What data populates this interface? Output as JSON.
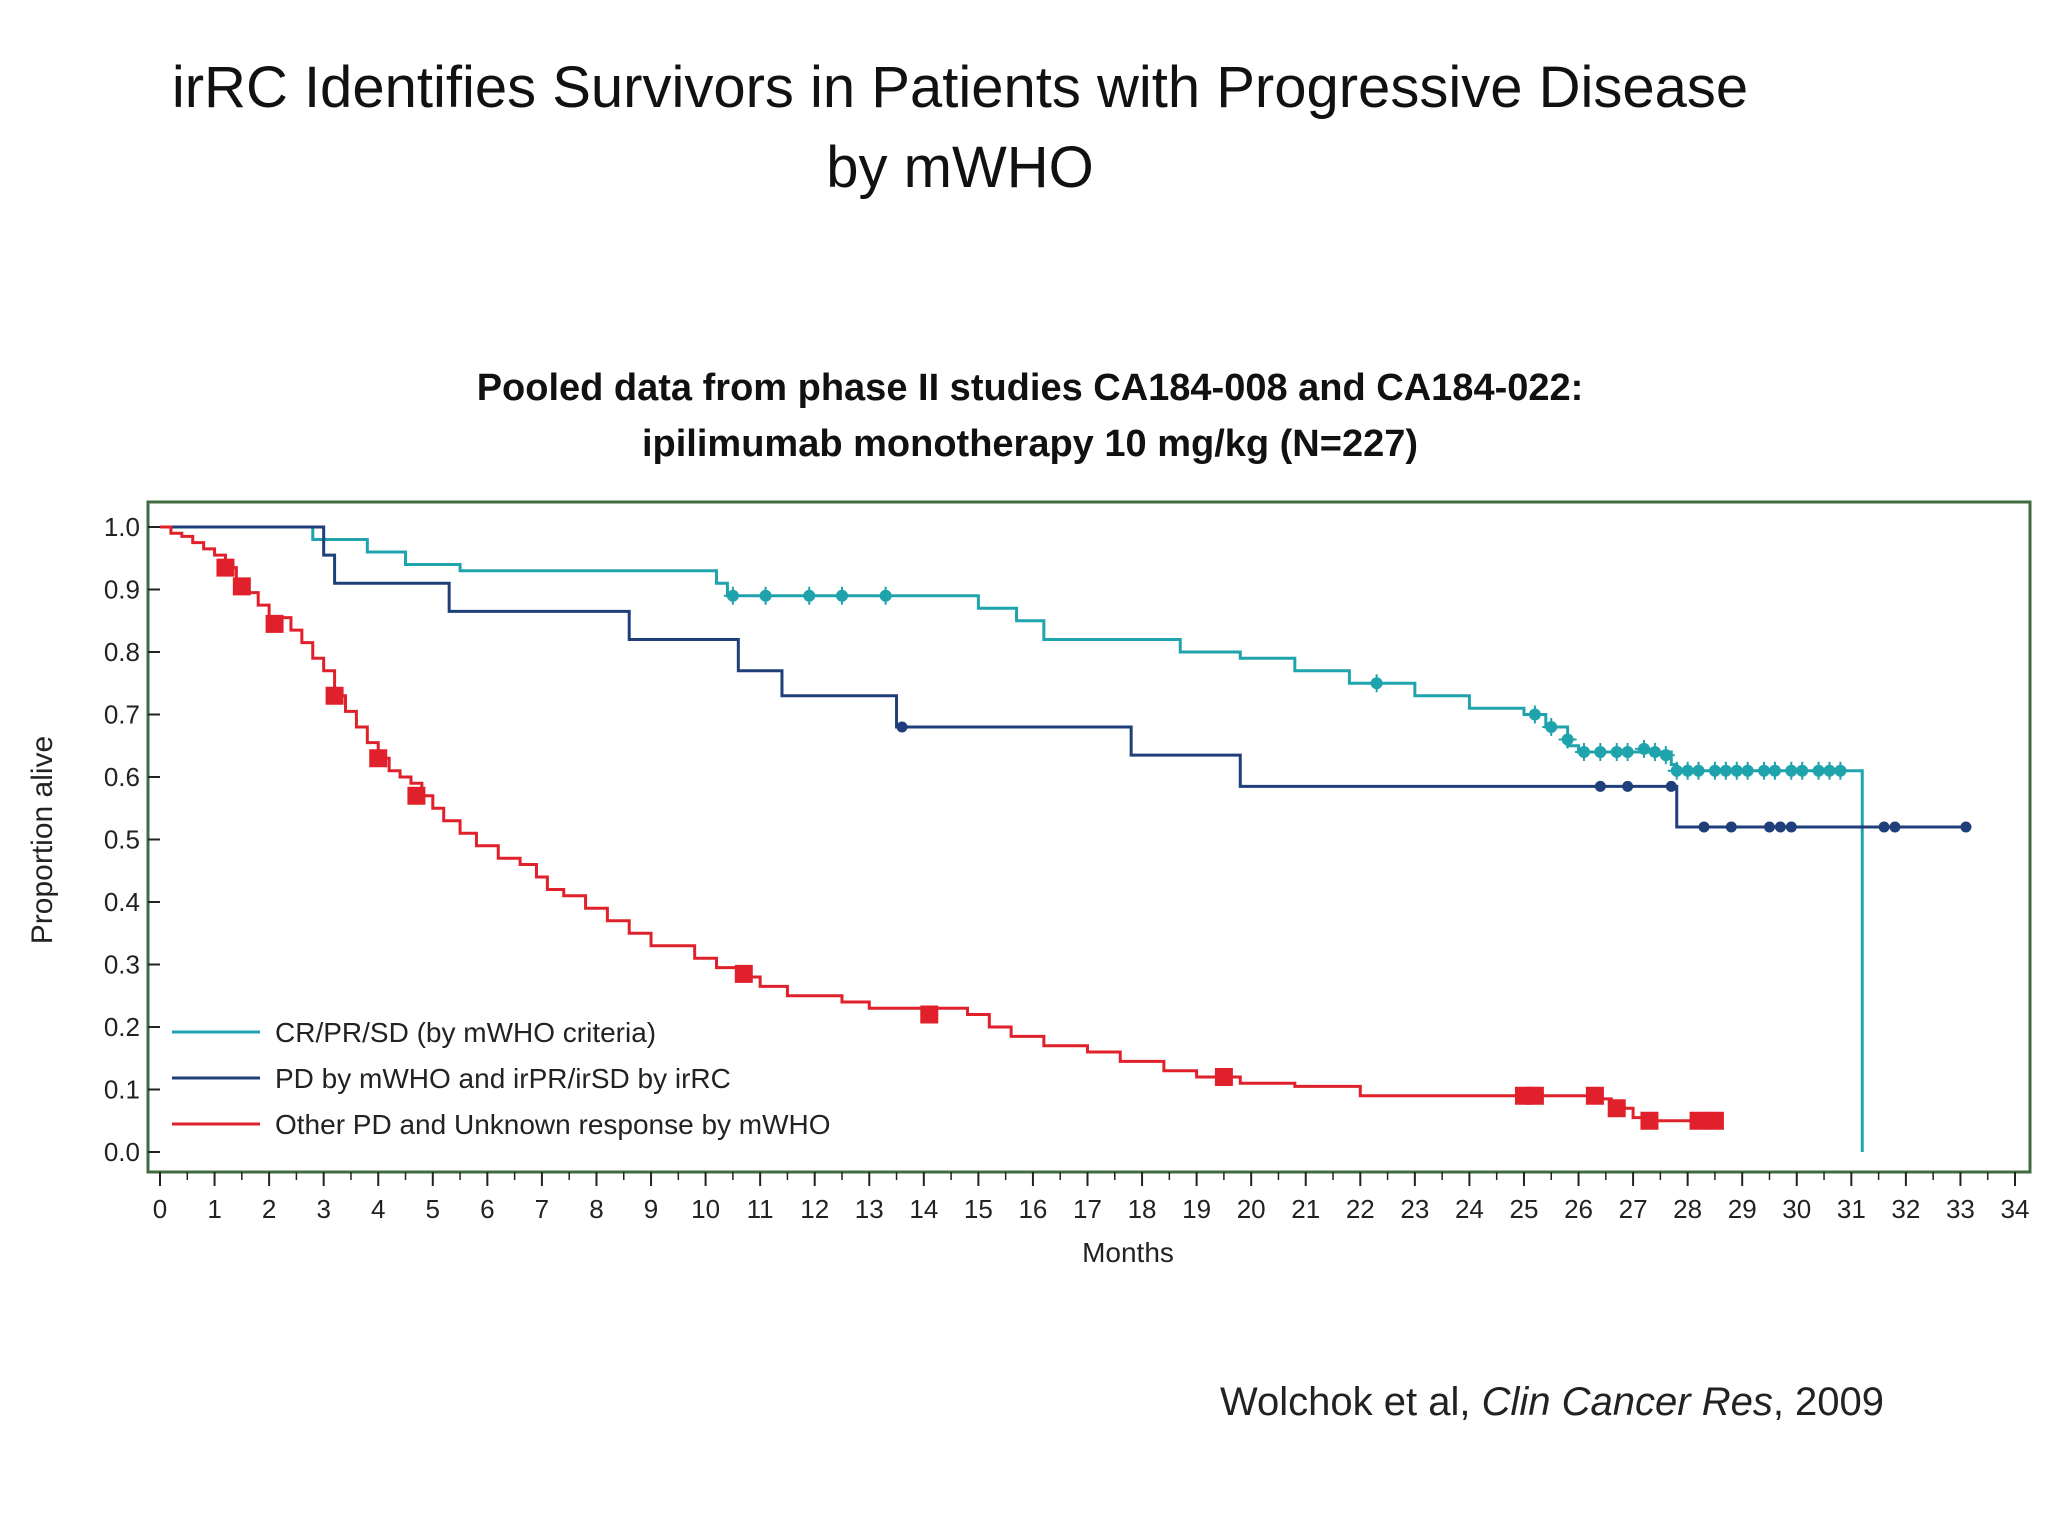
{
  "slide": {
    "title_line1": "irRC Identifies Survivors in Patients with Progressive Disease",
    "title_line2": "by mWHO",
    "subtitle_line1": "Pooled data from phase II studies CA184-008 and CA184-022:",
    "subtitle_line2": "ipilimumab monotherapy 10 mg/kg (N=227)",
    "citation_prefix": "Wolchok et al, ",
    "citation_journal": "Clin Cancer Res",
    "citation_suffix": ", 2009"
  },
  "colors": {
    "cr_pr_sd": "#1fa3ad",
    "pd_irpr": "#1f3f7a",
    "other_pd": "#e0202a",
    "frame": "#3f6b3f"
  },
  "chart_data": {
    "type": "line",
    "subtype": "kaplan-meier",
    "xlabel": "Months",
    "ylabel": "Proportion alive",
    "xlim": [
      0,
      34
    ],
    "ylim": [
      0.0,
      1.0
    ],
    "x_ticks": [
      0,
      1,
      2,
      3,
      4,
      5,
      6,
      7,
      8,
      9,
      10,
      11,
      12,
      13,
      14,
      15,
      16,
      17,
      18,
      19,
      20,
      21,
      22,
      23,
      24,
      25,
      26,
      27,
      28,
      29,
      30,
      31,
      32,
      33,
      34
    ],
    "y_ticks": [
      "0.0",
      "0.1",
      "0.2",
      "0.3",
      "0.4",
      "0.5",
      "0.6",
      "0.7",
      "0.8",
      "0.9",
      "1.0"
    ],
    "legend_position": "bottom-left",
    "grid": false,
    "series": [
      {
        "name": "CR/PR/SD (by mWHO criteria)",
        "color_key": "cr_pr_sd",
        "steps": [
          [
            0,
            1.0
          ],
          [
            2.8,
            0.98
          ],
          [
            3.8,
            0.96
          ],
          [
            4.5,
            0.94
          ],
          [
            5.5,
            0.93
          ],
          [
            10.2,
            0.91
          ],
          [
            10.4,
            0.89
          ],
          [
            15.0,
            0.87
          ],
          [
            15.7,
            0.85
          ],
          [
            16.2,
            0.82
          ],
          [
            18.7,
            0.8
          ],
          [
            19.8,
            0.79
          ],
          [
            20.8,
            0.77
          ],
          [
            21.8,
            0.75
          ],
          [
            23.0,
            0.73
          ],
          [
            24.0,
            0.71
          ],
          [
            25.0,
            0.7
          ],
          [
            25.4,
            0.68
          ],
          [
            25.8,
            0.65
          ],
          [
            26.0,
            0.64
          ],
          [
            27.7,
            0.62
          ],
          [
            27.8,
            0.61
          ],
          [
            31.2,
            0.61
          ],
          [
            31.2,
            0.0
          ]
        ],
        "censored": [
          [
            10.5,
            0.89
          ],
          [
            11.1,
            0.89
          ],
          [
            11.9,
            0.89
          ],
          [
            12.5,
            0.89
          ],
          [
            13.3,
            0.89
          ],
          [
            22.3,
            0.75
          ],
          [
            25.2,
            0.7
          ],
          [
            25.5,
            0.68
          ],
          [
            25.8,
            0.66
          ],
          [
            26.1,
            0.64
          ],
          [
            26.4,
            0.64
          ],
          [
            26.7,
            0.64
          ],
          [
            26.9,
            0.64
          ],
          [
            27.2,
            0.645
          ],
          [
            27.4,
            0.64
          ],
          [
            27.6,
            0.635
          ],
          [
            27.8,
            0.61
          ],
          [
            28.0,
            0.61
          ],
          [
            28.2,
            0.61
          ],
          [
            28.5,
            0.61
          ],
          [
            28.7,
            0.61
          ],
          [
            28.9,
            0.61
          ],
          [
            29.1,
            0.61
          ],
          [
            29.4,
            0.61
          ],
          [
            29.6,
            0.61
          ],
          [
            29.9,
            0.61
          ],
          [
            30.1,
            0.61
          ],
          [
            30.4,
            0.61
          ],
          [
            30.6,
            0.61
          ],
          [
            30.8,
            0.61
          ]
        ]
      },
      {
        "name": "PD by mWHO and irPR/irSD by irRC",
        "color_key": "pd_irpr",
        "steps": [
          [
            0,
            1.0
          ],
          [
            3.0,
            0.955
          ],
          [
            3.2,
            0.91
          ],
          [
            5.3,
            0.865
          ],
          [
            8.6,
            0.82
          ],
          [
            10.6,
            0.77
          ],
          [
            11.4,
            0.73
          ],
          [
            13.5,
            0.68
          ],
          [
            17.8,
            0.635
          ],
          [
            19.8,
            0.585
          ],
          [
            27.8,
            0.52
          ],
          [
            33.2,
            0.52
          ]
        ],
        "censored": [
          [
            13.6,
            0.68
          ],
          [
            26.4,
            0.585
          ],
          [
            26.9,
            0.585
          ],
          [
            27.7,
            0.585
          ],
          [
            28.3,
            0.52
          ],
          [
            28.8,
            0.52
          ],
          [
            29.5,
            0.52
          ],
          [
            29.7,
            0.52
          ],
          [
            29.9,
            0.52
          ],
          [
            31.6,
            0.52
          ],
          [
            31.8,
            0.52
          ],
          [
            33.1,
            0.52
          ]
        ]
      },
      {
        "name": "Other PD and Unknown response by mWHO",
        "color_key": "other_pd",
        "steps": [
          [
            0,
            1.0
          ],
          [
            0.2,
            0.99
          ],
          [
            0.4,
            0.985
          ],
          [
            0.6,
            0.975
          ],
          [
            0.8,
            0.965
          ],
          [
            1.0,
            0.955
          ],
          [
            1.2,
            0.935
          ],
          [
            1.4,
            0.915
          ],
          [
            1.6,
            0.895
          ],
          [
            1.8,
            0.875
          ],
          [
            2.0,
            0.855
          ],
          [
            2.4,
            0.835
          ],
          [
            2.6,
            0.815
          ],
          [
            2.8,
            0.79
          ],
          [
            3.0,
            0.77
          ],
          [
            3.2,
            0.73
          ],
          [
            3.4,
            0.705
          ],
          [
            3.6,
            0.68
          ],
          [
            3.8,
            0.655
          ],
          [
            4.0,
            0.63
          ],
          [
            4.2,
            0.61
          ],
          [
            4.4,
            0.6
          ],
          [
            4.6,
            0.59
          ],
          [
            4.8,
            0.57
          ],
          [
            5.0,
            0.55
          ],
          [
            5.2,
            0.53
          ],
          [
            5.5,
            0.51
          ],
          [
            5.8,
            0.49
          ],
          [
            6.2,
            0.47
          ],
          [
            6.6,
            0.46
          ],
          [
            6.9,
            0.44
          ],
          [
            7.1,
            0.42
          ],
          [
            7.4,
            0.41
          ],
          [
            7.8,
            0.39
          ],
          [
            8.2,
            0.37
          ],
          [
            8.6,
            0.35
          ],
          [
            9.0,
            0.33
          ],
          [
            9.8,
            0.31
          ],
          [
            10.2,
            0.295
          ],
          [
            10.8,
            0.28
          ],
          [
            11.0,
            0.265
          ],
          [
            11.5,
            0.25
          ],
          [
            12.5,
            0.24
          ],
          [
            13.0,
            0.23
          ],
          [
            14.8,
            0.22
          ],
          [
            15.2,
            0.2
          ],
          [
            15.6,
            0.185
          ],
          [
            16.2,
            0.17
          ],
          [
            17.0,
            0.16
          ],
          [
            17.6,
            0.145
          ],
          [
            18.4,
            0.13
          ],
          [
            19.0,
            0.12
          ],
          [
            19.8,
            0.11
          ],
          [
            20.8,
            0.105
          ],
          [
            22.0,
            0.09
          ],
          [
            24.5,
            0.09
          ],
          [
            25.5,
            0.09
          ],
          [
            26.3,
            0.085
          ],
          [
            26.6,
            0.07
          ],
          [
            27.0,
            0.055
          ],
          [
            27.4,
            0.05
          ],
          [
            28.6,
            0.05
          ]
        ],
        "censored": [
          [
            1.2,
            0.935
          ],
          [
            1.5,
            0.905
          ],
          [
            2.1,
            0.845
          ],
          [
            3.2,
            0.73
          ],
          [
            4.0,
            0.63
          ],
          [
            4.7,
            0.57
          ],
          [
            10.7,
            0.285
          ],
          [
            14.1,
            0.22
          ],
          [
            19.5,
            0.12
          ],
          [
            25.0,
            0.09
          ],
          [
            25.2,
            0.09
          ],
          [
            26.3,
            0.09
          ],
          [
            26.7,
            0.07
          ],
          [
            27.3,
            0.05
          ],
          [
            28.2,
            0.05
          ],
          [
            28.5,
            0.05
          ]
        ]
      }
    ]
  }
}
